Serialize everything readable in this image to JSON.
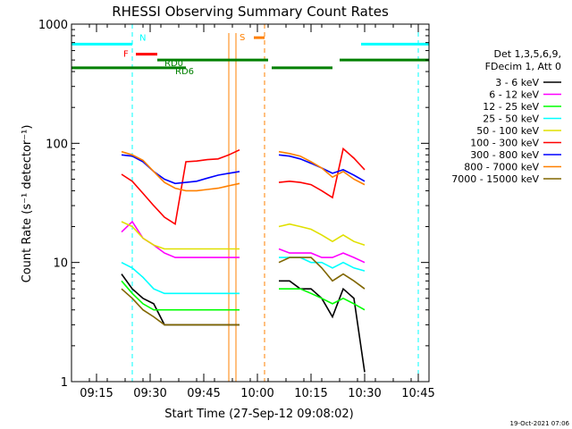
{
  "chart_data": {
    "type": "line",
    "title": "RHESSI Observing Summary Count Rates",
    "xlabel": "Start Time (27-Sep-12 09:08:02)",
    "ylabel": "Count Rate (s⁻¹ detector⁻¹)",
    "yscale": "log",
    "xlim": [
      "09:08",
      "10:48"
    ],
    "ylim": [
      1,
      1000
    ],
    "x_ticks": [
      "09:15",
      "09:30",
      "09:45",
      "10:00",
      "10:15",
      "10:30",
      "10:45"
    ],
    "y_ticks": [
      "1",
      "10",
      "100",
      "1000"
    ],
    "legend_header": [
      "Det 1,3,5,6,9,",
      "FDecim 1, Att 0"
    ],
    "legend_position": "right",
    "timestamp": "19-Oct-2021 07:06",
    "x": [
      "09:22",
      "09:25",
      "09:28",
      "09:31",
      "09:34",
      "09:37",
      "09:40",
      "09:43",
      "09:46",
      "09:49",
      "09:52",
      "09:55",
      "10:06",
      "10:09",
      "10:12",
      "10:15",
      "10:18",
      "10:21",
      "10:24",
      "10:27",
      "10:30"
    ],
    "series": [
      {
        "name": "3 - 6 keV",
        "color": "#000000",
        "values": [
          8,
          6,
          5,
          4.5,
          3,
          3,
          3,
          3,
          3,
          3,
          3,
          3,
          7,
          7,
          6,
          6,
          5,
          3.5,
          6,
          5,
          1.2
        ]
      },
      {
        "name": "6 - 12 keV",
        "color": "#ff00ff",
        "values": [
          18,
          22,
          16,
          14,
          12,
          11,
          11,
          11,
          11,
          11,
          11,
          11,
          13,
          12,
          12,
          12,
          11,
          11,
          12,
          11,
          10
        ]
      },
      {
        "name": "12 - 25 keV",
        "color": "#00ff00",
        "values": [
          7,
          5.5,
          4.5,
          4,
          4,
          4,
          4,
          4,
          4,
          4,
          4,
          4,
          6,
          6,
          6,
          5.5,
          5,
          4.5,
          5,
          4.5,
          4
        ]
      },
      {
        "name": "25 - 50 keV",
        "color": "#00ffff",
        "values": [
          10,
          9,
          7.5,
          6,
          5.5,
          5.5,
          5.5,
          5.5,
          5.5,
          5.5,
          5.5,
          5.5,
          11,
          11,
          11,
          10,
          10,
          9,
          10,
          9,
          8.5
        ]
      },
      {
        "name": "50 - 100 keV",
        "color": "#e0e000",
        "values": [
          22,
          20,
          16,
          14,
          13,
          13,
          13,
          13,
          13,
          13,
          13,
          13,
          20,
          21,
          20,
          19,
          17,
          15,
          17,
          15,
          14
        ]
      },
      {
        "name": "100 - 300 keV",
        "color": "#ff0000",
        "values": [
          55,
          48,
          38,
          30,
          24,
          21,
          70,
          71,
          73,
          74,
          80,
          88,
          47,
          48,
          47,
          45,
          40,
          35,
          90,
          75,
          60
        ]
      },
      {
        "name": "300 - 800 keV",
        "color": "#0000ff",
        "values": [
          80,
          78,
          70,
          58,
          50,
          46,
          47,
          48,
          51,
          54,
          56,
          58,
          80,
          78,
          74,
          68,
          62,
          56,
          60,
          54,
          48
        ]
      },
      {
        "name": "800 - 7000 keV",
        "color": "#ff8000",
        "values": [
          85,
          80,
          72,
          58,
          47,
          42,
          40,
          40,
          41,
          42,
          44,
          46,
          85,
          82,
          78,
          70,
          62,
          52,
          58,
          50,
          45
        ]
      },
      {
        "name": "7000 - 15000 keV",
        "color": "#806600",
        "values": [
          6,
          5,
          4,
          3.5,
          3,
          3,
          3,
          3,
          3,
          3,
          3,
          3,
          10,
          11,
          11,
          11,
          9,
          7,
          8,
          7,
          6
        ]
      }
    ],
    "markers": {
      "N": {
        "color": "#00ffff",
        "segments": [
          [
            "09:08",
            "09:25"
          ],
          [
            "10:29",
            "10:48"
          ]
        ],
        "y": 680,
        "dashed_lines": [
          "09:25",
          "10:45"
        ]
      },
      "F": {
        "color": "#ff0000",
        "segments": [
          [
            "09:26",
            "09:32"
          ]
        ],
        "y": 560
      },
      "S": {
        "color": "#ff8000",
        "segments": [
          [
            "09:59",
            "10:02"
          ]
        ],
        "y": 770,
        "solid_lines": [
          "09:52",
          "09:54"
        ],
        "dashed_lines": [
          "10:02"
        ]
      },
      "RD0": {
        "color": "#008000",
        "segments": [
          [
            "09:32",
            "10:03"
          ],
          [
            "10:23",
            "10:48"
          ]
        ],
        "y": 500
      },
      "RD6": {
        "color": "#008000",
        "segments": [
          [
            "09:08",
            "09:40"
          ],
          [
            "10:04",
            "10:21"
          ]
        ],
        "y": 430
      }
    }
  }
}
